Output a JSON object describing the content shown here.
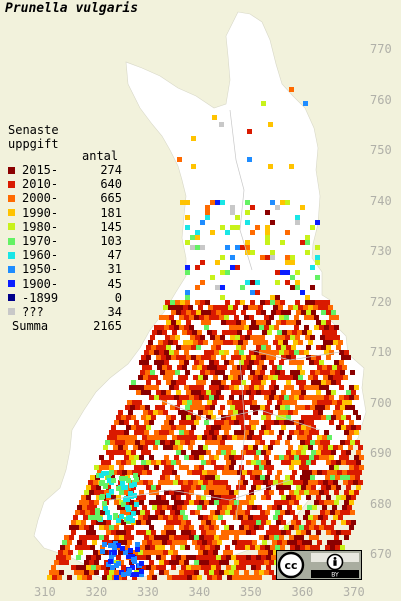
{
  "title": "Prunella vulgaris",
  "legend": {
    "heading_line1": "Senaste",
    "heading_line2": "uppgift",
    "count_heading": "antal",
    "items": [
      {
        "label": "2015-",
        "count": "274",
        "color": "#8b0000"
      },
      {
        "label": "2010-",
        "count": "640",
        "color": "#d91a00"
      },
      {
        "label": "2000-",
        "count": "665",
        "color": "#ff6a00"
      },
      {
        "label": "1990-",
        "count": "181",
        "color": "#ffc300"
      },
      {
        "label": "1980-",
        "count": "145",
        "color": "#c8f21a"
      },
      {
        "label": "1970-",
        "count": "103",
        "color": "#64f264"
      },
      {
        "label": "1960-",
        "count": "47",
        "color": "#19e6e6"
      },
      {
        "label": "1950-",
        "count": "31",
        "color": "#1e8cff"
      },
      {
        "label": "1900-",
        "count": "45",
        "color": "#0a1eff"
      },
      {
        "label": "-1899",
        "count": "0",
        "color": "#00008b"
      },
      {
        "label": "???",
        "count": "34",
        "color": "#c8c8c8"
      }
    ],
    "summa_label": "Summa",
    "summa_count": "2165"
  },
  "y_ticks": [
    "770",
    "760",
    "750",
    "740",
    "730",
    "720",
    "710",
    "700",
    "690",
    "680",
    "670"
  ],
  "x_ticks": [
    "310",
    "320",
    "330",
    "340",
    "350",
    "360",
    "370"
  ],
  "license_badge": {
    "icons": [
      "cc-icon",
      "by-icon"
    ],
    "text": "BY"
  }
}
